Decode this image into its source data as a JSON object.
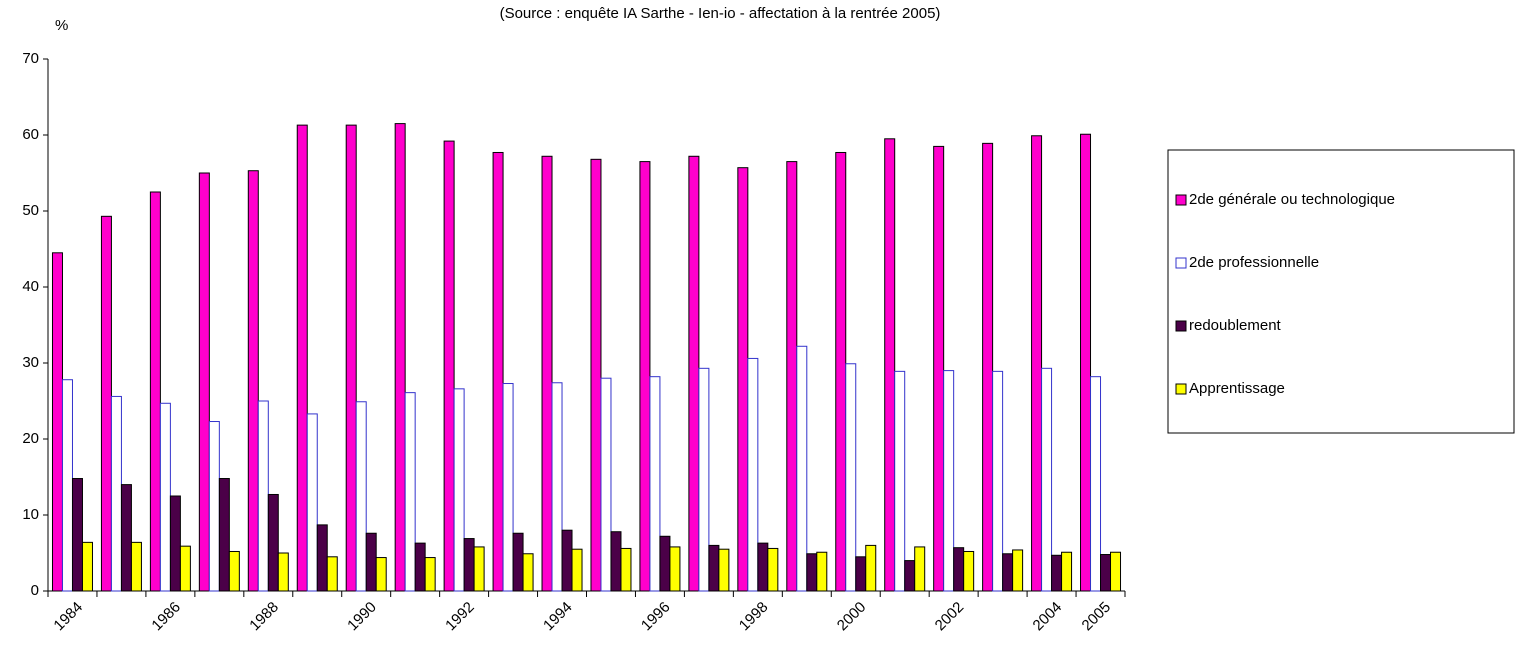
{
  "chart_data": {
    "type": "bar",
    "title": "(Source : enquête IA Sarthe - Ien-io - affectation à la rentrée  2005)",
    "y_label": "%",
    "categories": [
      "1984",
      null,
      "1986",
      null,
      "1988",
      null,
      "1990",
      null,
      "1992",
      null,
      "1994",
      null,
      "1996",
      null,
      "1998",
      null,
      "2000",
      null,
      "2002",
      null,
      "2004",
      "2005"
    ],
    "series": [
      {
        "name": "2de générale ou technologique",
        "color": "#ff00cc",
        "values": [
          44.5,
          49.3,
          52.5,
          55,
          55.3,
          61.3,
          61.3,
          61.5,
          59.2,
          57.7,
          57.2,
          56.8,
          56.5,
          57.2,
          55.7,
          56.5,
          57.7,
          59.5,
          58.5,
          58.9,
          59.9,
          60.1
        ]
      },
      {
        "name": "2de professionnelle",
        "color": "#3333cc",
        "hollow": true,
        "values": [
          27.8,
          25.6,
          24.7,
          22.3,
          25,
          23.3,
          24.9,
          26.1,
          26.6,
          27.3,
          27.4,
          28,
          28.2,
          29.3,
          30.6,
          32.2,
          29.9,
          28.9,
          29,
          28.9,
          29.3,
          28.2
        ]
      },
      {
        "name": "redoublement",
        "color": "#4b0048",
        "values": [
          14.8,
          14,
          12.5,
          14.8,
          12.7,
          8.7,
          7.6,
          6.3,
          6.9,
          7.6,
          8,
          7.8,
          7.2,
          6,
          6.3,
          4.9,
          4.5,
          4,
          5.7,
          4.9,
          4.7,
          4.8
        ]
      },
      {
        "name": "Apprentissage",
        "color": "#ffff00",
        "values": [
          6.4,
          6.4,
          5.9,
          5.2,
          5,
          4.5,
          4.4,
          4.4,
          5.8,
          4.9,
          5.5,
          5.6,
          5.8,
          5.5,
          5.6,
          5.1,
          6,
          5.8,
          5.2,
          5.4,
          5.1,
          5.1
        ]
      }
    ],
    "ylim": [
      0,
      70
    ],
    "yticks": [
      0,
      10,
      20,
      30,
      40,
      50,
      60,
      70
    ],
    "grid": false,
    "legend": "right"
  }
}
